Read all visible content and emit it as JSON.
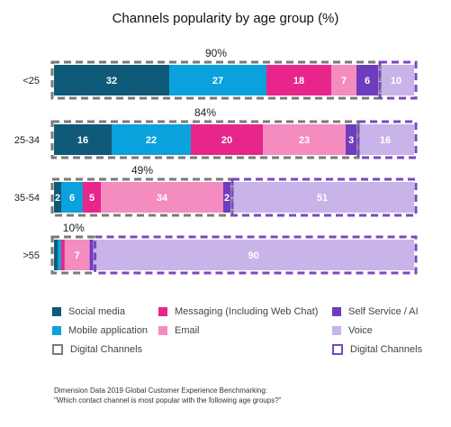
{
  "chart_data": {
    "type": "bar",
    "orientation": "horizontal",
    "stacked": true,
    "title": "Channels popularity by age group (%)",
    "categories": [
      "<25",
      "25-34",
      "35-54",
      ">55"
    ],
    "series": [
      {
        "name": "Social media",
        "values": [
          32,
          16,
          2,
          1
        ],
        "color": "#0e5a78",
        "label_color": "#ffffff",
        "group": "digital"
      },
      {
        "name": "Mobile application",
        "values": [
          27,
          22,
          6,
          1
        ],
        "color": "#0aa1dc",
        "label_color": "#ffffff",
        "group": "digital"
      },
      {
        "name": "Messaging (Including Web Chat)",
        "values": [
          18,
          20,
          5,
          1
        ],
        "color": "#e8258a",
        "label_color": "#ffffff",
        "group": "digital"
      },
      {
        "name": "Email",
        "values": [
          7,
          23,
          34,
          7
        ],
        "color": "#f48cc0",
        "label_color": "#ffffff",
        "group": "digital"
      },
      {
        "name": "Self Service / AI",
        "values": [
          6,
          3,
          2,
          1
        ],
        "color": "#6e3cbc",
        "label_color": "#ffffff",
        "group": "digital"
      },
      {
        "name": "Voice",
        "values": [
          10,
          16,
          51,
          90
        ],
        "color": "#c8b4e8",
        "label_color": "#ffffff",
        "group": "voice"
      }
    ],
    "value_labels": [
      [
        "32",
        "27",
        "18",
        "7",
        "6",
        "10"
      ],
      [
        "16",
        "22",
        "20",
        "23",
        "3",
        "16"
      ],
      [
        "2",
        "6",
        "5",
        "34",
        "2",
        "51"
      ],
      [
        "",
        "",
        "",
        "7",
        "",
        "90"
      ]
    ],
    "digital_totals": [
      "90%",
      "84%",
      "49%",
      "10%"
    ],
    "legend_position": "bottom",
    "grid": false,
    "digital_box_color": "#7a7a7a",
    "voice_box_color": "#7a48c0"
  },
  "legend": {
    "items": [
      {
        "label": "Social media",
        "kind": "swatch",
        "color": "#0e5a78"
      },
      {
        "label": "Messaging (Including Web Chat)",
        "kind": "swatch",
        "color": "#e8258a"
      },
      {
        "label": "Self Service / AI",
        "kind": "swatch",
        "color": "#6e3cbc"
      },
      {
        "label": "Mobile application",
        "kind": "swatch",
        "color": "#0aa1dc"
      },
      {
        "label": "Email",
        "kind": "swatch",
        "color": "#f48cc0"
      },
      {
        "label": "Voice",
        "kind": "swatch",
        "color": "#c8b4e8"
      },
      {
        "label": "Digital Channels",
        "kind": "dashed",
        "color": "#7a7a7a"
      },
      {
        "label": "Digital Channels",
        "kind": "dashed",
        "color": "#7a48c0"
      }
    ]
  },
  "source": {
    "line1": "Dimension Data 2019 Global Customer Experience Benchmarking:",
    "line2": "\"Which contact channel is most popular with the following age groups?\""
  }
}
